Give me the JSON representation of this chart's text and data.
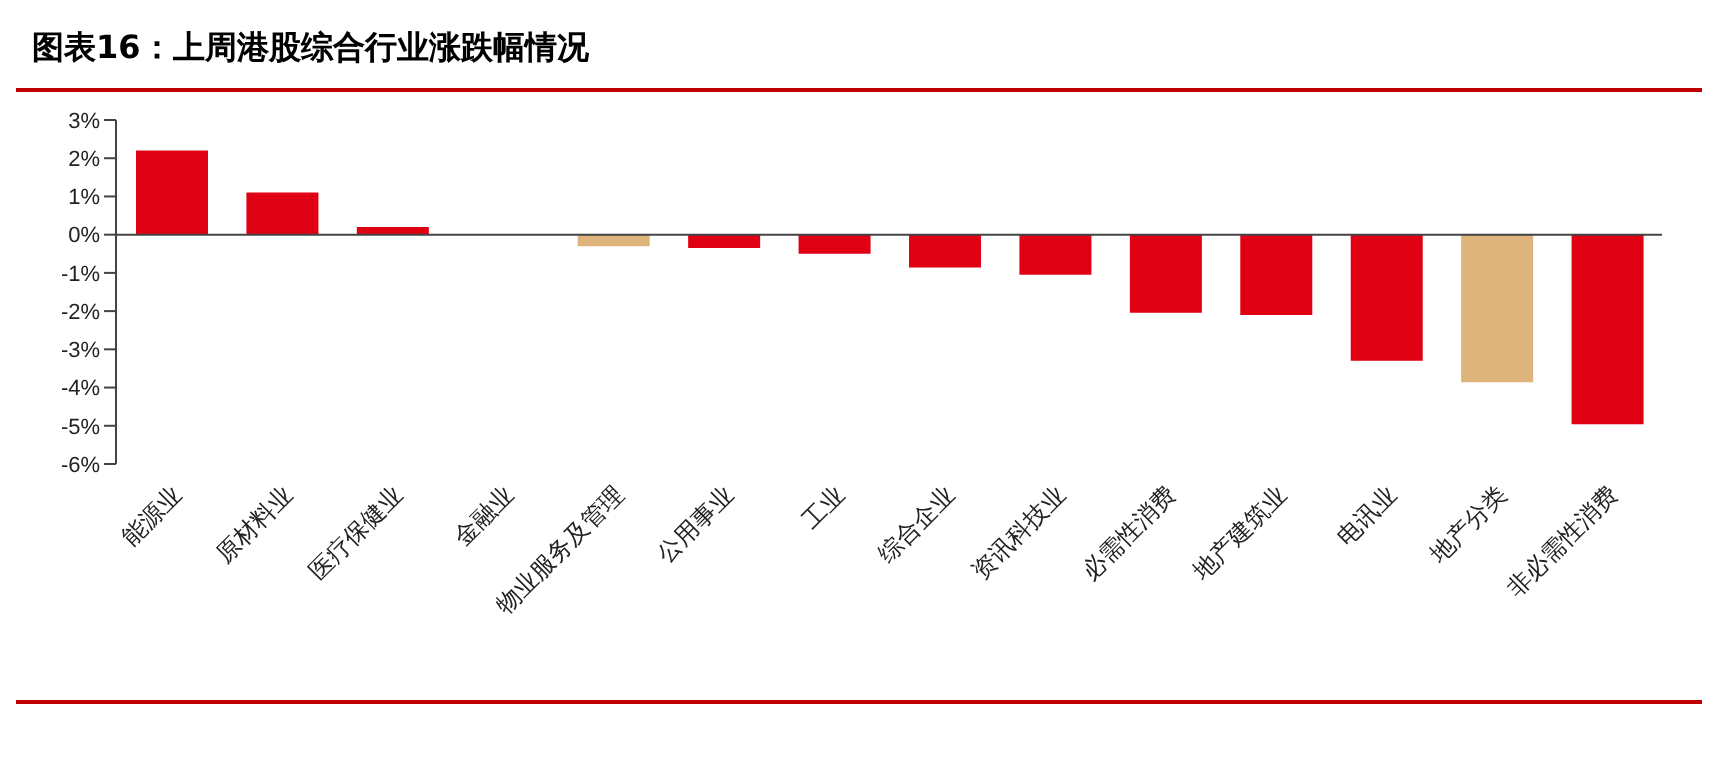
{
  "chart_data": {
    "type": "bar",
    "title": "图表16：上周港股综合行业涨跌幅情况",
    "categories": [
      "能源业",
      "原材料业",
      "医疗保健业",
      "金融业",
      "物业服务及管理",
      "公用事业",
      "工业",
      "综合企业",
      "资讯科技业",
      "必需性消费",
      "地产建筑业",
      "电讯业",
      "地产分类",
      "非必需性消费"
    ],
    "values": [
      2.2,
      1.1,
      0.2,
      0,
      -0.3,
      -0.35,
      -0.5,
      -0.86,
      -1.05,
      -2.04,
      -2.1,
      -3.3,
      -3.86,
      -4.96
    ],
    "colors": [
      "#e00013",
      "#e00013",
      "#e00013",
      "#e00013",
      "#dcb47c",
      "#e00013",
      "#e00013",
      "#e00013",
      "#e00013",
      "#e00013",
      "#e00013",
      "#e00013",
      "#dcb47c",
      "#e00013"
    ],
    "ylim": [
      -6,
      3
    ],
    "yticks": [
      {
        "value": 3,
        "label": "3%"
      },
      {
        "value": 2,
        "label": "2%"
      },
      {
        "value": 1,
        "label": "1%"
      },
      {
        "value": 0,
        "label": "0%"
      },
      {
        "value": -1,
        "label": "-1%"
      },
      {
        "value": -2,
        "label": "-2%"
      },
      {
        "value": -3,
        "label": "-3%"
      },
      {
        "value": -4,
        "label": "-4%"
      },
      {
        "value": -5,
        "label": "-5%"
      },
      {
        "value": -6,
        "label": "-6%"
      }
    ],
    "legend": false
  }
}
